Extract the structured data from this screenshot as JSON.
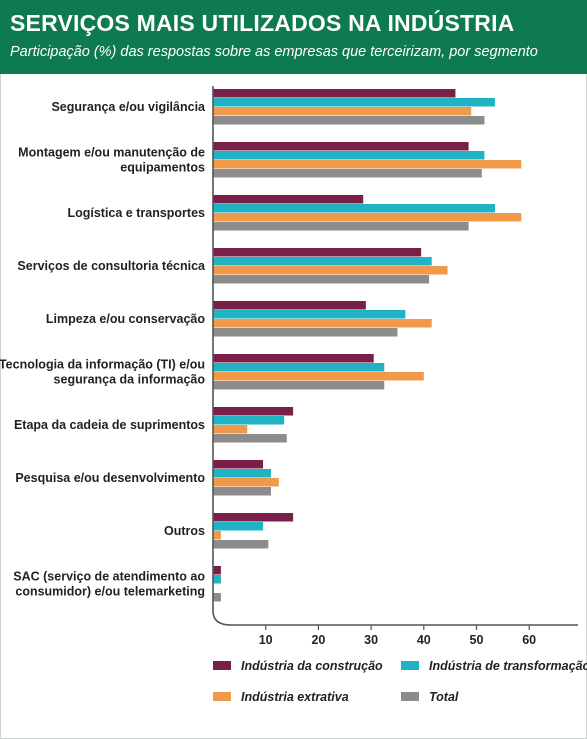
{
  "header": {
    "title": "SERVIÇOS MAIS UTILIZADOS NA INDÚSTRIA",
    "subtitle": "Participação (%) das respostas sobre as empresas que terceirizam, por segmento"
  },
  "chart_data": {
    "type": "bar",
    "orientation": "horizontal",
    "title": "SERVIÇOS MAIS UTILIZADOS NA INDÚSTRIA",
    "subtitle": "Participação (%) das respostas sobre as empresas que terceirizam, por segmento",
    "xlim": [
      0,
      70
    ],
    "xticks": [
      10,
      20,
      30,
      40,
      50,
      60
    ],
    "grid": false,
    "legend_position": "bottom",
    "categories": [
      [
        "Segurança e/ou vigilância"
      ],
      [
        "Montagem e/ou manutenção de",
        "equipamentos"
      ],
      [
        "Logística e transportes"
      ],
      [
        "Serviços de consultoria técnica"
      ],
      [
        "Limpeza e/ou conservação"
      ],
      [
        "Tecnologia da informação (TI) e/ou",
        "segurança da informação"
      ],
      [
        "Etapa da cadeia de suprimentos"
      ],
      [
        "Pesquisa e/ou desenvolvimento"
      ],
      [
        "Outros"
      ],
      [
        "SAC (serviço de atendimento ao",
        "consumidor) e/ou telemarketing"
      ]
    ],
    "series": [
      {
        "name": "Indústria da construção",
        "color": "#7a1f49",
        "values": [
          46,
          48.5,
          28.5,
          39.5,
          29,
          30.5,
          15.2,
          9.5,
          15.2,
          1.5
        ]
      },
      {
        "name": "Indústria de transformação",
        "color": "#1fb3c4",
        "values": [
          53.5,
          51.5,
          53.5,
          41.5,
          36.5,
          32.5,
          13.5,
          11,
          9.5,
          1.5
        ]
      },
      {
        "name": "Indústria extrativa",
        "color": "#f0994a",
        "values": [
          49,
          58.5,
          58.5,
          44.5,
          41.5,
          40,
          6.5,
          12.5,
          1.5,
          0
        ]
      },
      {
        "name": "Total",
        "color": "#8c8c8c",
        "values": [
          51.5,
          51,
          48.5,
          41,
          35,
          32.5,
          14,
          11,
          10.5,
          1.5
        ]
      }
    ]
  }
}
